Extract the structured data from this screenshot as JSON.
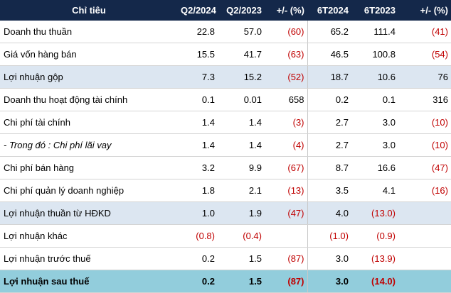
{
  "header": {
    "label": "Chỉ tiêu",
    "col1": "Q2/2024",
    "col2": "Q2/2023",
    "col3": "+/- (%)",
    "col5": "6T2024",
    "col6": "6T2023",
    "col7": "+/- (%)"
  },
  "rows": [
    {
      "label": "Doanh thu thuần",
      "v1": "22.8",
      "v2": "57.0",
      "v3": "(60)",
      "v5": "65.2",
      "v6": "111.4",
      "v7": "(41)"
    },
    {
      "label": "Giá vốn hàng bán",
      "v1": "15.5",
      "v2": "41.7",
      "v3": "(63)",
      "v5": "46.5",
      "v6": "100.8",
      "v7": "(54)"
    },
    {
      "label": "Lợi nhuận gộp",
      "v1": "7.3",
      "v2": "15.2",
      "v3": "(52)",
      "v5": "18.7",
      "v6": "10.6",
      "v7": "76"
    },
    {
      "label": "Doanh thu hoạt động tài chính",
      "v1": "0.1",
      "v2": "0.01",
      "v3": "658",
      "v5": "0.2",
      "v6": "0.1",
      "v7": "316"
    },
    {
      "label": "Chi phí tài chính",
      "v1": "1.4",
      "v2": "1.4",
      "v3": "(3)",
      "v5": "2.7",
      "v6": "3.0",
      "v7": "(10)"
    },
    {
      "label": "- Trong đó : Chi phí lãi vay",
      "v1": "1.4",
      "v2": "1.4",
      "v3": "(4)",
      "v5": "2.7",
      "v6": "3.0",
      "v7": "(10)"
    },
    {
      "label": "Chi phí bán hàng",
      "v1": "3.2",
      "v2": "9.9",
      "v3": "(67)",
      "v5": "8.7",
      "v6": "16.6",
      "v7": "(47)"
    },
    {
      "label": "Chi phí quản lý doanh nghiệp",
      "v1": "1.8",
      "v2": "2.1",
      "v3": "(13)",
      "v5": "3.5",
      "v6": "4.1",
      "v7": "(16)"
    },
    {
      "label": "Lợi nhuận thuần từ HĐKD",
      "v1": "1.0",
      "v2": "1.9",
      "v3": "(47)",
      "v5": "4.0",
      "v6": "(13.0)",
      "v7": ""
    },
    {
      "label": "Lợi nhuận khác",
      "v1": "(0.8)",
      "v2": "(0.4)",
      "v3": "",
      "v5": "(1.0)",
      "v6": "(0.9)",
      "v7": ""
    },
    {
      "label": "Lợi nhuận trước thuế",
      "v1": "0.2",
      "v2": "1.5",
      "v3": "(87)",
      "v5": "3.0",
      "v6": "(13.9)",
      "v7": ""
    },
    {
      "label": "Lợi nhuận sau thuế",
      "v1": "0.2",
      "v2": "1.5",
      "v3": "(87)",
      "v5": "3.0",
      "v6": "(14.0)",
      "v7": ""
    }
  ],
  "colors": {
    "header_bg": "#14284a",
    "shaded_bg": "#dce6f1",
    "final_bg": "#92cddc",
    "negative": "#c00000"
  }
}
